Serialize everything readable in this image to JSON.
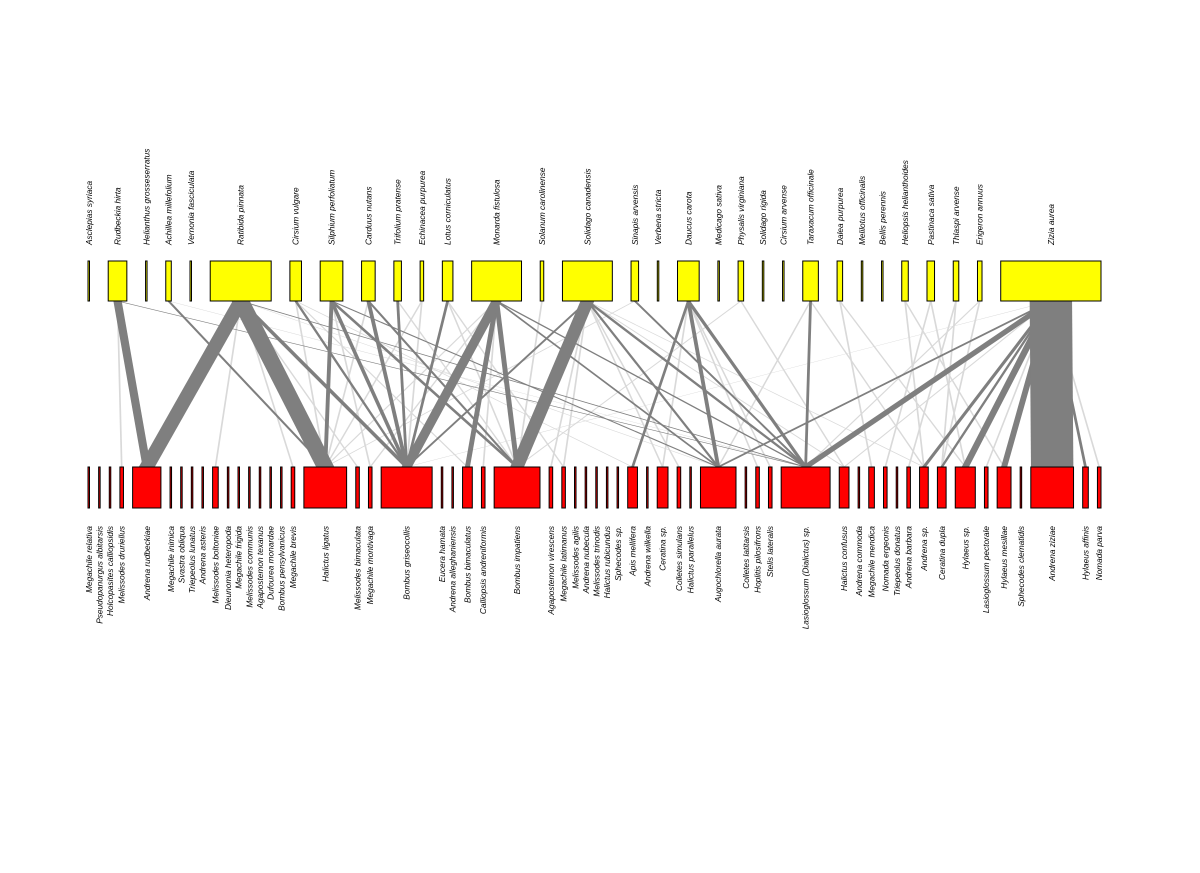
{
  "colors": {
    "plant_fill": "#ffff00",
    "pollinator_fill": "#ff0000",
    "link_strong": "#7f7f7f",
    "link_weak": "#d9d9d9",
    "border": "#000000"
  },
  "plants": [
    {
      "name": "Asclepias syriaca",
      "abundance": 0
    },
    {
      "name": "Rudbeckia hirta",
      "abundance": 17
    },
    {
      "name": "Helianthus grosseserratus",
      "abundance": 0
    },
    {
      "name": "Achillea millefolium",
      "abundance": 4
    },
    {
      "name": "Vernonia fasciculata",
      "abundance": 0
    },
    {
      "name": "Ratibida pinnata",
      "abundance": 59
    },
    {
      "name": "Cirsium vulgare",
      "abundance": 10
    },
    {
      "name": "Silphium perfoliatum",
      "abundance": 21
    },
    {
      "name": "Carduus nutans",
      "abundance": 12
    },
    {
      "name": "Trifolium pratense",
      "abundance": 6
    },
    {
      "name": "Echinacea purpurea",
      "abundance": 2
    },
    {
      "name": "Lotus corniculatus",
      "abundance": 9
    },
    {
      "name": "Monarda fistulosa",
      "abundance": 48
    },
    {
      "name": "Solanum carolinense",
      "abundance": 2
    },
    {
      "name": "Solidago canadensis",
      "abundance": 48
    },
    {
      "name": "Sinapis arvensis",
      "abundance": 6
    },
    {
      "name": "Verbena stricta",
      "abundance": 0
    },
    {
      "name": "Daucus carota",
      "abundance": 20
    },
    {
      "name": "Medicago sativa",
      "abundance": 0
    },
    {
      "name": "Physalis virginiana",
      "abundance": 4
    },
    {
      "name": "Solidago rigida",
      "abundance": 0
    },
    {
      "name": "Cirsium arvense",
      "abundance": 0
    },
    {
      "name": "Taraxacum officinale",
      "abundance": 14
    },
    {
      "name": "Dalea purpurea",
      "abundance": 4
    },
    {
      "name": "Melilotus officinalis",
      "abundance": 0
    },
    {
      "name": "Bellis perennis",
      "abundance": 0
    },
    {
      "name": "Heliopsis helianthoides",
      "abundance": 5
    },
    {
      "name": "Pastinaca sativa",
      "abundance": 6
    },
    {
      "name": "Thlaspi arvense",
      "abundance": 4
    },
    {
      "name": "Erigeron annuus",
      "abundance": 3
    },
    {
      "name": "Zizia aurea",
      "abundance": 98
    }
  ],
  "pollinators": [
    {
      "name": "Megachile relativa",
      "abundance": 0
    },
    {
      "name": "Pseudopanurgus albitarsis",
      "abundance": 0
    },
    {
      "name": "Holcopasites calliopsidis",
      "abundance": 0
    },
    {
      "name": "Melissodes druriellus",
      "abundance": 2
    },
    {
      "name": "Andrena rudbeckiae",
      "abundance": 26
    },
    {
      "name": "Megachile inimica",
      "abundance": 0
    },
    {
      "name": "Svastra obliqua",
      "abundance": 0
    },
    {
      "name": "Triepeolus lunatus",
      "abundance": 0
    },
    {
      "name": "Andrena asteris",
      "abundance": 0
    },
    {
      "name": "Melissodes boltoniae",
      "abundance": 4
    },
    {
      "name": "Dieunomia heteropoda",
      "abundance": 0
    },
    {
      "name": "Megachile frigida",
      "abundance": 0
    },
    {
      "name": "Melissodes communis",
      "abundance": 0
    },
    {
      "name": "Agapostemon texanus",
      "abundance": 0
    },
    {
      "name": "Dufourea monardae",
      "abundance": 0
    },
    {
      "name": "Bombus pensylvanicus",
      "abundance": 0
    },
    {
      "name": "Megachile brevis",
      "abundance": 2
    },
    {
      "name": "Halictus ligatus",
      "abundance": 40
    },
    {
      "name": "Melissodes bimaculata",
      "abundance": 2
    },
    {
      "name": "Megachile montivaga",
      "abundance": 2
    },
    {
      "name": "Bombus griseocollis",
      "abundance": 48
    },
    {
      "name": "Eucera hamata",
      "abundance": 0
    },
    {
      "name": "Andrena alleghaniensis",
      "abundance": 0
    },
    {
      "name": "Bombus bimaculatus",
      "abundance": 8
    },
    {
      "name": "Calliopsis andreniformis",
      "abundance": 2
    },
    {
      "name": "Bombus impatiens",
      "abundance": 43
    },
    {
      "name": "Agapostemon virescens",
      "abundance": 2
    },
    {
      "name": "Megachile latimanus",
      "abundance": 2
    },
    {
      "name": "Melissodes agilis",
      "abundance": 0
    },
    {
      "name": "Andrena nubecula",
      "abundance": 0
    },
    {
      "name": "Melissodes trinodis",
      "abundance": 0
    },
    {
      "name": "Halictus rubicundus",
      "abundance": 0
    },
    {
      "name": "Sphecodes sp.",
      "abundance": 0
    },
    {
      "name": "Apis mellifera",
      "abundance": 8
    },
    {
      "name": "Andrena wilkella",
      "abundance": 0
    },
    {
      "name": "Ceratina sp.",
      "abundance": 9
    },
    {
      "name": "Colletes simulans",
      "abundance": 2
    },
    {
      "name": "Halictus parallelus",
      "abundance": 0
    },
    {
      "name": "Augochlorella aurata",
      "abundance": 33
    },
    {
      "name": "Colletes latitarsis",
      "abundance": 0
    },
    {
      "name": "Hoplitis pilosifrons",
      "abundance": 2
    },
    {
      "name": "Stelis lateralis",
      "abundance": 2
    },
    {
      "name": "Lasioglossum (Dialictus) sp.",
      "abundance": 46
    },
    {
      "name": "Halictus confusus",
      "abundance": 8
    },
    {
      "name": "Andrena commoda",
      "abundance": 0
    },
    {
      "name": "Megachile mendica",
      "abundance": 4
    },
    {
      "name": "Nomada ergeonis",
      "abundance": 2
    },
    {
      "name": "Triepeolus donatus",
      "abundance": 0
    },
    {
      "name": "Andrena barbara",
      "abundance": 2
    },
    {
      "name": "Andrena sp.",
      "abundance": 7
    },
    {
      "name": "Ceratina dupla",
      "abundance": 7
    },
    {
      "name": "Hylaeus sp.",
      "abundance": 18
    },
    {
      "name": "Lasioglossum pectorale",
      "abundance": 2
    },
    {
      "name": "Hylaeus mesillae",
      "abundance": 12
    },
    {
      "name": "Sphecodes clematidis",
      "abundance": 0
    },
    {
      "name": "Andrena ziziae",
      "abundance": 40
    },
    {
      "name": "Hylaeus affinis",
      "abundance": 4
    },
    {
      "name": "Nomada parva",
      "abundance": 2
    }
  ],
  "interactions": [
    {
      "plant": "Zizia aurea",
      "pollinator": "Andrena ziziae",
      "weight": 38
    },
    {
      "plant": "Ratibida pinnata",
      "pollinator": "Andrena rudbeckiae",
      "weight": 14
    },
    {
      "plant": "Ratibida pinnata",
      "pollinator": "Halictus ligatus",
      "weight": 16
    },
    {
      "plant": "Ratibida pinnata",
      "pollinator": "Bombus griseocollis",
      "weight": 4
    },
    {
      "plant": "Ratibida pinnata",
      "pollinator": "Lasioglossum (Dialictus) sp.",
      "weight": 2
    },
    {
      "plant": "Ratibida pinnata",
      "pollinator": "Augochlorella aurata",
      "weight": 1
    },
    {
      "plant": "Rudbeckia hirta",
      "pollinator": "Andrena rudbeckiae",
      "weight": 7
    },
    {
      "plant": "Achillea millefolium",
      "pollinator": "Halictus ligatus",
      "weight": 2
    },
    {
      "plant": "Cirsium vulgare",
      "pollinator": "Bombus griseocollis",
      "weight": 2
    },
    {
      "plant": "Cirsium vulgare",
      "pollinator": "Halictus ligatus",
      "weight": 1
    },
    {
      "plant": "Silphium perfoliatum",
      "pollinator": "Halictus ligatus",
      "weight": 3
    },
    {
      "plant": "Silphium perfoliatum",
      "pollinator": "Bombus griseocollis",
      "weight": 3
    },
    {
      "plant": "Silphium perfoliatum",
      "pollinator": "Bombus impatiens",
      "weight": 3
    },
    {
      "plant": "Silphium perfoliatum",
      "pollinator": "Augochlorella aurata",
      "weight": 2
    },
    {
      "plant": "Carduus nutans",
      "pollinator": "Bombus griseocollis",
      "weight": 3
    },
    {
      "plant": "Carduus nutans",
      "pollinator": "Bombus impatiens",
      "weight": 2
    },
    {
      "plant": "Trifolium pratense",
      "pollinator": "Bombus griseocollis",
      "weight": 2
    },
    {
      "plant": "Echinacea purpurea",
      "pollinator": "Bombus griseocollis",
      "weight": 1
    },
    {
      "plant": "Lotus corniculatus",
      "pollinator": "Bombus griseocollis",
      "weight": 2
    },
    {
      "plant": "Lotus corniculatus",
      "pollinator": "Bombus impatiens",
      "weight": 1
    },
    {
      "plant": "Monarda fistulosa",
      "pollinator": "Bombus griseocollis",
      "weight": 9
    },
    {
      "plant": "Monarda fistulosa",
      "pollinator": "Bombus bimaculatus",
      "weight": 4
    },
    {
      "plant": "Monarda fistulosa",
      "pollinator": "Bombus impatiens",
      "weight": 4
    },
    {
      "plant": "Monarda fistulosa",
      "pollinator": "Augochlorella aurata",
      "weight": 2
    },
    {
      "plant": "Monarda fistulosa",
      "pollinator": "Lasioglossum (Dialictus) sp.",
      "weight": 2
    },
    {
      "plant": "Solidago canadensis",
      "pollinator": "Bombus impatiens",
      "weight": 12
    },
    {
      "plant": "Solidago canadensis",
      "pollinator": "Bombus griseocollis",
      "weight": 2
    },
    {
      "plant": "Solidago canadensis",
      "pollinator": "Lasioglossum (Dialictus) sp.",
      "weight": 3
    },
    {
      "plant": "Solidago canadensis",
      "pollinator": "Augochlorella aurata",
      "weight": 2
    },
    {
      "plant": "Sinapis arvensis",
      "pollinator": "Lasioglossum (Dialictus) sp.",
      "weight": 2
    },
    {
      "plant": "Daucus carota",
      "pollinator": "Augochlorella aurata",
      "weight": 3
    },
    {
      "plant": "Daucus carota",
      "pollinator": "Lasioglossum (Dialictus) sp.",
      "weight": 3
    },
    {
      "plant": "Daucus carota",
      "pollinator": "Apis mellifera",
      "weight": 2
    },
    {
      "plant": "Taraxacum officinale",
      "pollinator": "Lasioglossum (Dialictus) sp.",
      "weight": 2
    },
    {
      "plant": "Zizia aurea",
      "pollinator": "Lasioglossum (Dialictus) sp.",
      "weight": 8
    },
    {
      "plant": "Zizia aurea",
      "pollinator": "Augochlorella aurata",
      "weight": 3
    },
    {
      "plant": "Zizia aurea",
      "pollinator": "Hylaeus sp.",
      "weight": 6
    },
    {
      "plant": "Zizia aurea",
      "pollinator": "Hylaeus mesillae",
      "weight": 5
    },
    {
      "plant": "Zizia aurea",
      "pollinator": "Andrena sp.",
      "weight": 3
    },
    {
      "plant": "Zizia aurea",
      "pollinator": "Hylaeus affinis",
      "weight": 2
    },
    {
      "plant": "Zizia aurea",
      "pollinator": "Bombus griseocollis",
      "weight": 1
    },
    {
      "plant": "Zizia aurea",
      "pollinator": "Ceratina dupla",
      "weight": 2
    },
    {
      "plant": "Rudbeckia hirta",
      "pollinator": "Lasioglossum (Dialictus) sp.",
      "weight": 2
    },
    {
      "plant": "Ratibida pinnata",
      "pollinator": "Melissodes boltoniae",
      "weight": 1
    },
    {
      "plant": "Ratibida pinnata",
      "pollinator": "Megachile brevis",
      "weight": 1
    },
    {
      "plant": "Ratibida pinnata",
      "pollinator": "Melissodes bimaculata",
      "weight": 1
    },
    {
      "plant": "Silphium perfoliatum",
      "pollinator": "Megachile montivaga",
      "weight": 1
    },
    {
      "plant": "Monarda fistulosa",
      "pollinator": "Halictus ligatus",
      "weight": 1
    },
    {
      "plant": "Monarda fistulosa",
      "pollinator": "Calliopsis andreniformis",
      "weight": 1
    },
    {
      "plant": "Solidago canadensis",
      "pollinator": "Agapostemon virescens",
      "weight": 1
    },
    {
      "plant": "Solidago canadensis",
      "pollinator": "Megachile latimanus",
      "weight": 1
    },
    {
      "plant": "Solidago canadensis",
      "pollinator": "Ceratina sp.",
      "weight": 1
    },
    {
      "plant": "Solidago canadensis",
      "pollinator": "Colletes simulans",
      "weight": 1
    },
    {
      "plant": "Solidago canadensis",
      "pollinator": "Halictus confusus",
      "weight": 1
    },
    {
      "plant": "Daucus carota",
      "pollinator": "Ceratina sp.",
      "weight": 1
    },
    {
      "plant": "Daucus carota",
      "pollinator": "Hoplitis pilosifrons",
      "weight": 1
    },
    {
      "plant": "Daucus carota",
      "pollinator": "Stelis lateralis",
      "weight": 1
    },
    {
      "plant": "Physalis virginiana",
      "pollinator": "Halictus confusus",
      "weight": 1
    },
    {
      "plant": "Dalea purpurea",
      "pollinator": "Megachile mendica",
      "weight": 1
    },
    {
      "plant": "Heliopsis helianthoides",
      "pollinator": "Andrena sp.",
      "weight": 1
    },
    {
      "plant": "Pastinaca sativa",
      "pollinator": "Nomada ergeonis",
      "weight": 1
    },
    {
      "plant": "Thlaspi arvense",
      "pollinator": "Andrena barbara",
      "weight": 1
    },
    {
      "plant": "Erigeron annuus",
      "pollinator": "Ceratina dupla",
      "weight": 1
    },
    {
      "plant": "Zizia aurea",
      "pollinator": "Lasioglossum pectorale",
      "weight": 1
    },
    {
      "plant": "Zizia aurea",
      "pollinator": "Nomada parva",
      "weight": 1
    },
    {
      "plant": "Zizia aurea",
      "pollinator": "Halictus confusus",
      "weight": 1
    },
    {
      "plant": "Taraxacum officinale",
      "pollinator": "Andrena sp.",
      "weight": 1
    },
    {
      "plant": "Taraxacum officinale",
      "pollinator": "Augochlorella aurata",
      "weight": 1
    },
    {
      "plant": "Achillea millefolium",
      "pollinator": "Lasioglossum (Dialictus) sp.",
      "weight": 1
    },
    {
      "plant": "Cirsium vulgare",
      "pollinator": "Bombus bimaculatus",
      "weight": 1
    },
    {
      "plant": "Trifolium pratense",
      "pollinator": "Bombus impatiens",
      "weight": 1
    },
    {
      "plant": "Carduus nutans",
      "pollinator": "Halictus ligatus",
      "weight": 1
    },
    {
      "plant": "Echinacea purpurea",
      "pollinator": "Halictus ligatus",
      "weight": 1
    },
    {
      "plant": "Solanum carolinense",
      "pollinator": "Bombus impatiens",
      "weight": 1
    },
    {
      "plant": "Sinapis arvensis",
      "pollinator": "Halictus ligatus",
      "weight": 1
    },
    {
      "plant": "Lotus corniculatus",
      "pollinator": "Megachile latimanus",
      "weight": 1
    },
    {
      "plant": "Physalis virginiana",
      "pollinator": "Bombus impatiens",
      "weight": 1
    },
    {
      "plant": "Dalea purpurea",
      "pollinator": "Hylaeus sp.",
      "weight": 1
    },
    {
      "plant": "Heliopsis helianthoides",
      "pollinator": "Hylaeus mesillae",
      "weight": 1
    },
    {
      "plant": "Pastinaca sativa",
      "pollinator": "Hylaeus sp.",
      "weight": 1
    },
    {
      "plant": "Thlaspi arvense",
      "pollinator": "Ceratina dupla",
      "weight": 1
    },
    {
      "plant": "Erigeron annuus",
      "pollinator": "Lasioglossum (Dialictus) sp.",
      "weight": 1
    },
    {
      "plant": "Rudbeckia hirta",
      "pollinator": "Melissodes druriellus",
      "weight": 1
    },
    {
      "plant": "Monarda fistulosa",
      "pollinator": "Megachile montivaga",
      "weight": 1
    },
    {
      "plant": "Solidago canadensis",
      "pollinator": "Andrena sp.",
      "weight": 1
    },
    {
      "plant": "Cirsium vulgare",
      "pollinator": "Apis mellifera",
      "weight": 1
    }
  ]
}
